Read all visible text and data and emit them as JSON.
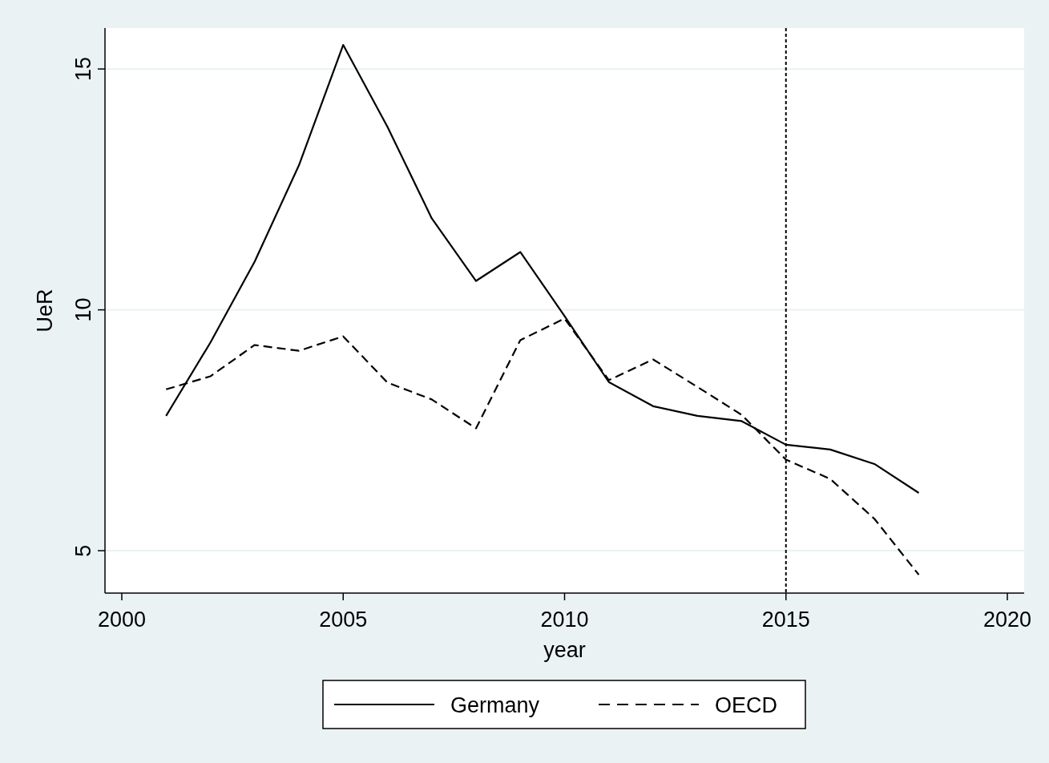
{
  "chart_data": {
    "type": "line",
    "xlabel": "year",
    "ylabel": "UeR",
    "x": [
      2001,
      2002,
      2003,
      2004,
      2005,
      2006,
      2007,
      2008,
      2009,
      2010,
      2011,
      2012,
      2013,
      2014,
      2015,
      2016,
      2017,
      2018
    ],
    "series": [
      {
        "name": "Germany",
        "color": "#000000",
        "line_style": "solid",
        "values": [
          7.8,
          9.32,
          11.0,
          13.0,
          15.5,
          13.8,
          11.9,
          10.6,
          11.2,
          9.87,
          8.5,
          8.0,
          7.8,
          7.69,
          7.2,
          7.1,
          6.8,
          6.2
        ]
      },
      {
        "name": "OECD",
        "color": "#000000",
        "line_style": "dashed",
        "values": [
          8.35,
          8.62,
          9.27,
          9.15,
          9.45,
          8.49,
          8.14,
          7.54,
          9.37,
          9.82,
          8.54,
          8.97,
          8.4,
          7.82,
          6.89,
          6.49,
          5.66,
          4.5
        ]
      }
    ],
    "xlim": [
      1999.62,
      2020.38
    ],
    "xticks": [
      2000,
      2005,
      2010,
      2015,
      2020
    ],
    "ylim": [
      4.12,
      15.85
    ],
    "yticks": [
      5,
      10,
      15
    ],
    "grid": "y",
    "legend": "bottom",
    "ref_lines": [
      {
        "axis": "x",
        "value": 2015,
        "line_style": "dotted",
        "color": "#000000"
      }
    ]
  }
}
